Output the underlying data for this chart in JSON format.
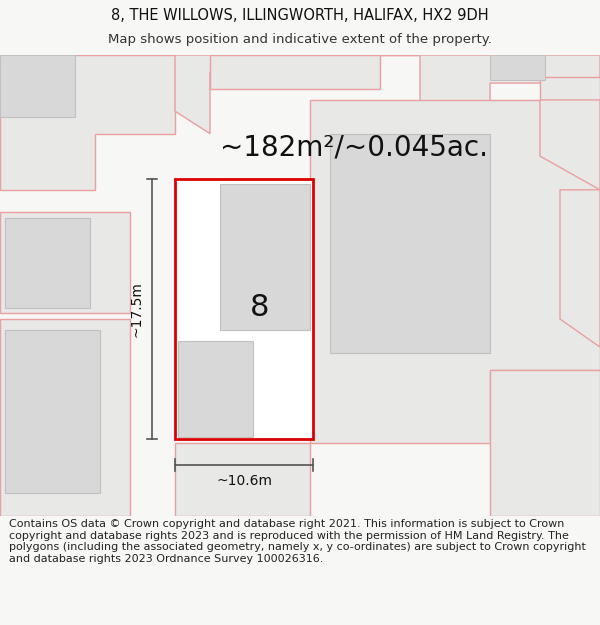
{
  "title_line1": "8, THE WILLOWS, ILLINGWORTH, HALIFAX, HX2 9DH",
  "title_line2": "Map shows position and indicative extent of the property.",
  "area_label": "~182m²/~0.045ac.",
  "number_label": "8",
  "width_label": "~10.6m",
  "height_label": "~17.5m",
  "footer_text": "Contains OS data © Crown copyright and database right 2021. This information is subject to Crown copyright and database rights 2023 and is reproduced with the permission of HM Land Registry. The polygons (including the associated geometry, namely x, y co-ordinates) are subject to Crown copyright and database rights 2023 Ordnance Survey 100026316.",
  "bg_color": "#f7f7f5",
  "map_bg": "#ffffff",
  "plot_outline_color": "#dd0000",
  "building_fill": "#d8d8d8",
  "building_edge": "#c0c0c0",
  "neighbor_fill": "#e8e8e6",
  "neighbor_outline": "#e8a0a0",
  "dark_line": "#222222",
  "dim_line": "#555555",
  "title_fontsize": 10.5,
  "subtitle_fontsize": 9.5,
  "area_fontsize": 20,
  "number_fontsize": 22,
  "dim_fontsize": 10,
  "footer_fontsize": 8.0
}
